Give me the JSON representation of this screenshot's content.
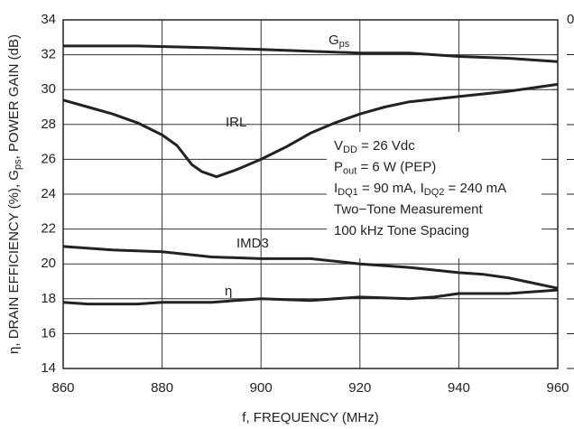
{
  "chart_data": {
    "type": "line",
    "ylabel": [
      "η, DRAIN EFFICIENCY (%), G",
      "ps",
      ", POWER GAIN (dB)"
    ],
    "xlabel": "f, FREQUENCY (MHz)",
    "xlim": [
      860,
      960
    ],
    "xticks": [
      860,
      880,
      900,
      920,
      940,
      960
    ],
    "ylim": [
      14,
      34
    ],
    "yticks": [
      14,
      16,
      18,
      20,
      22,
      24,
      26,
      28,
      30,
      32,
      34
    ],
    "y2lim": [
      -50,
      0
    ],
    "y2ticks": [
      {
        "value": -50,
        "label": "–"
      },
      {
        "value": -45,
        "label": "–"
      },
      {
        "value": -40,
        "label": "–"
      },
      {
        "value": -35,
        "label": "–"
      },
      {
        "value": -30,
        "label": "–"
      },
      {
        "value": -25,
        "label": "–"
      },
      {
        "value": -20,
        "label": "–"
      },
      {
        "value": -15,
        "label": "–"
      },
      {
        "value": -10,
        "label": "–"
      },
      {
        "value": -5,
        "label": "–"
      },
      0
    ],
    "grid": true,
    "series": [
      {
        "label": [
          "G",
          "ps"
        ],
        "color": "#222",
        "x": [
          860,
          875,
          890,
          900,
          910,
          920,
          930,
          940,
          950,
          960
        ],
        "values": [
          32.5,
          32.5,
          32.4,
          32.3,
          32.2,
          32.1,
          32.1,
          31.9,
          31.8,
          31.6
        ]
      },
      {
        "label": [
          "IRL"
        ],
        "color": "#222",
        "x": [
          860,
          865,
          870,
          875,
          880,
          883,
          886,
          888,
          891,
          895,
          900,
          905,
          910,
          915,
          920,
          925,
          930,
          940,
          950,
          960
        ],
        "values": [
          29.4,
          29.0,
          28.6,
          28.1,
          27.4,
          26.8,
          25.7,
          25.3,
          25.0,
          25.4,
          26.0,
          26.7,
          27.5,
          28.1,
          28.6,
          29.0,
          29.3,
          29.6,
          29.9,
          30.3
        ]
      },
      {
        "label": [
          "IMD3"
        ],
        "color": "#222",
        "x": [
          860,
          870,
          880,
          890,
          900,
          910,
          920,
          930,
          940,
          945,
          950,
          955,
          960
        ],
        "values": [
          21.0,
          20.8,
          20.7,
          20.4,
          20.3,
          20.3,
          20.0,
          19.8,
          19.5,
          19.4,
          19.2,
          18.9,
          18.6
        ]
      },
      {
        "label": [
          "η"
        ],
        "color": "#222",
        "x": [
          860,
          865,
          875,
          880,
          890,
          900,
          910,
          920,
          930,
          935,
          940,
          950,
          960
        ],
        "values": [
          17.8,
          17.7,
          17.7,
          17.8,
          17.8,
          18.0,
          17.9,
          18.1,
          18.0,
          18.1,
          18.3,
          18.3,
          18.5
        ]
      }
    ],
    "annotation": [
      [
        "V",
        "DD",
        " = 26 Vdc"
      ],
      [
        "P",
        "out",
        " = 6 W (PEP)"
      ],
      [
        "I",
        "DQ1",
        " = 90 mA, I",
        "DQ2",
        " = 240 mA"
      ],
      [
        "Two−Tone Measurement"
      ],
      [
        "100 kHz Tone Spacing"
      ]
    ]
  }
}
